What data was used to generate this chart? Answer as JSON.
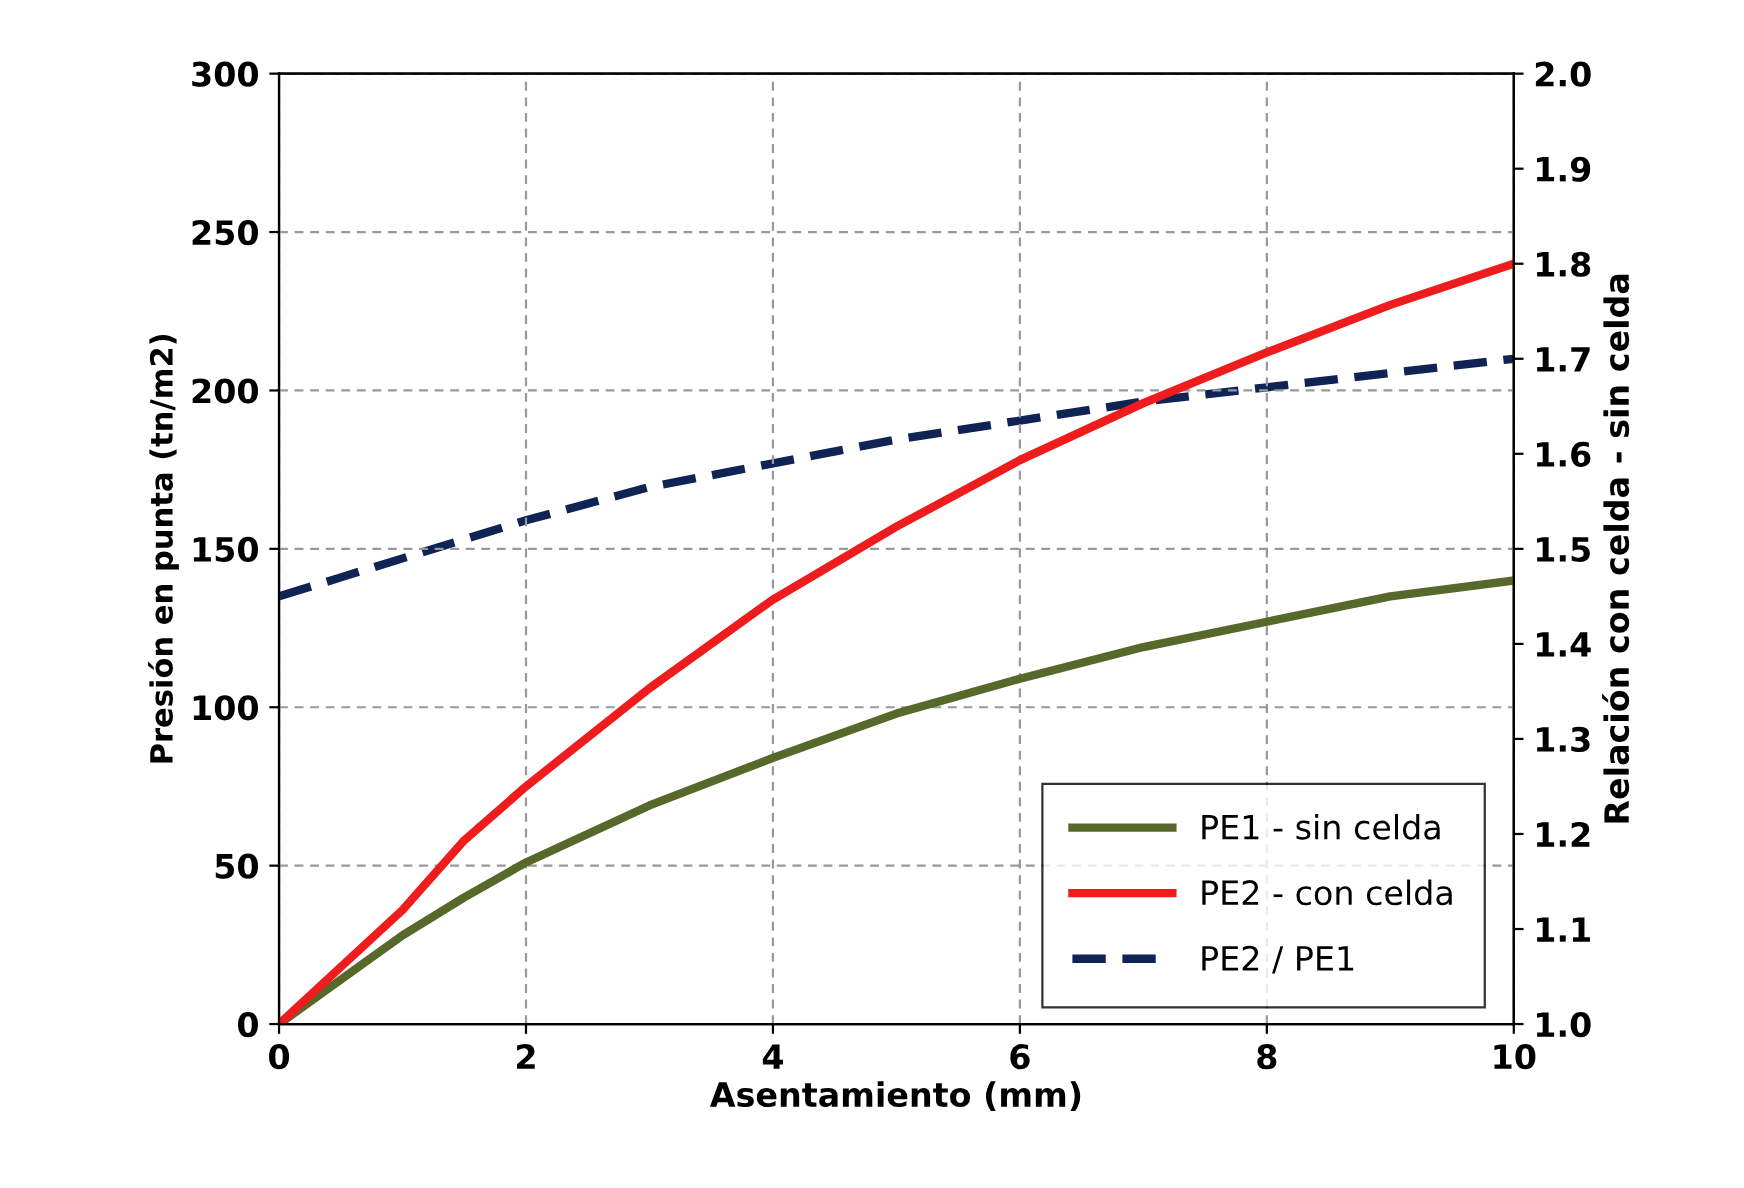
{
  "chart_data": {
    "type": "line",
    "xlabel": "Asentamiento (mm)",
    "ylabel": "Presión en punta (tn/m2)",
    "y2label": "Relación con celda - sin celda",
    "xlim": [
      0,
      10
    ],
    "xticks": [
      0,
      2,
      4,
      6,
      8,
      10
    ],
    "ylim": [
      0,
      300
    ],
    "yticks": [
      0,
      50,
      100,
      150,
      200,
      250,
      300
    ],
    "y2lim": [
      1.0,
      2.0
    ],
    "y2ticks": [
      {
        "value": 1.0,
        "label": "1.0"
      },
      1.1,
      1.2,
      1.3,
      1.4,
      1.5,
      1.6,
      1.7,
      1.8,
      1.9,
      {
        "value": 2.0,
        "label": "2.0"
      }
    ],
    "grid": true,
    "legend": "bottom right",
    "marker": "none",
    "x": [
      0,
      0.5,
      1,
      1.5,
      2,
      3,
      4,
      5,
      6,
      7,
      8,
      9,
      10
    ],
    "series": [
      {
        "name": "PE1 - sin celda",
        "color": "#56692b",
        "line_style": "solid",
        "values": [
          0,
          14,
          28,
          40,
          51,
          69,
          84,
          98,
          109,
          119,
          127,
          135,
          140
        ]
      },
      {
        "name": "PE2 - con celda",
        "color": "#ee1c1c",
        "line_style": "solid",
        "values": [
          0,
          18,
          36,
          58,
          75,
          106,
          134,
          157,
          178,
          196,
          212,
          227,
          240
        ]
      },
      {
        "name": "PE2 / PE1",
        "color": "#0f2454",
        "line_style": "dashed",
        "axis": "y2",
        "values": [
          1.45,
          1.47,
          1.49,
          1.51,
          1.53,
          1.565,
          1.59,
          1.615,
          1.635,
          1.655,
          1.67,
          1.685,
          1.7
        ]
      }
    ]
  }
}
